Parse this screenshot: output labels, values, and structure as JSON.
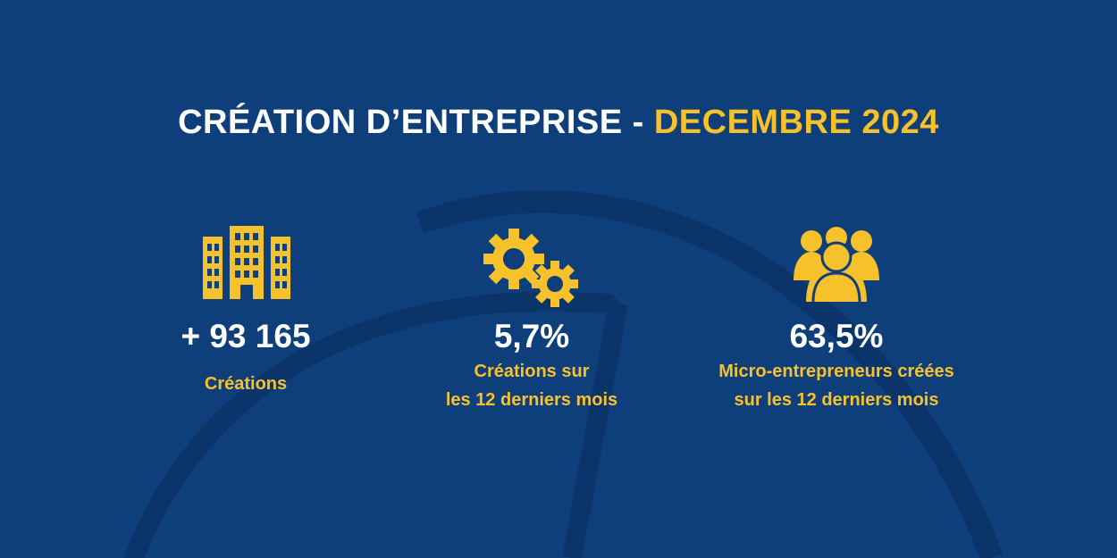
{
  "title": {
    "main": "CRÉATION D’ENTREPRISE - ",
    "highlight": "DECEMBRE 2024"
  },
  "stats": [
    {
      "icon": "building-icon",
      "value": "+ 93 165",
      "label_lines": [
        "Créations"
      ]
    },
    {
      "icon": "gears-icon",
      "value": "5,7%",
      "label_lines": [
        "Créations sur",
        "les 12 derniers mois"
      ]
    },
    {
      "icon": "people-group-icon",
      "value": "63,5%",
      "label_lines": [
        "Micro-entrepreneurs créées",
        "sur les 12 derniers mois"
      ]
    }
  ],
  "colors": {
    "background": "#0f3f7a",
    "accent": "#f6c12b",
    "text": "#ffffff",
    "decor": "#0b356a"
  }
}
